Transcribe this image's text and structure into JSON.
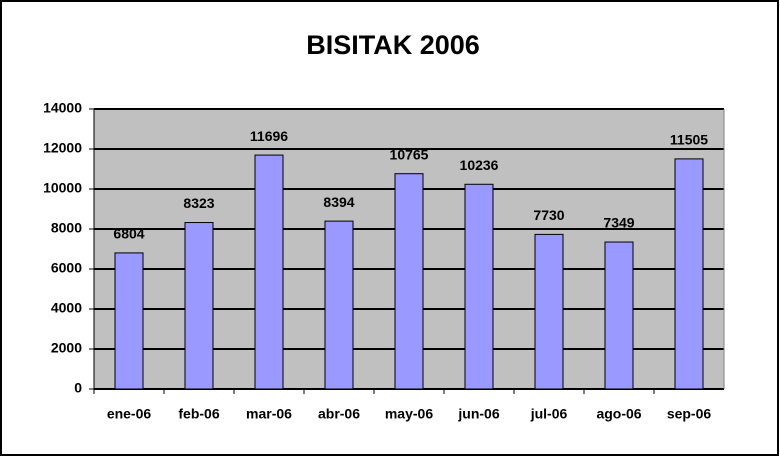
{
  "chart_data": {
    "type": "bar",
    "title": "BISITAK 2006",
    "categories": [
      "ene-06",
      "feb-06",
      "mar-06",
      "abr-06",
      "may-06",
      "jun-06",
      "jul-06",
      "ago-06",
      "sep-06"
    ],
    "values": [
      6804,
      8323,
      11696,
      8394,
      10765,
      10236,
      7730,
      7349,
      11505
    ],
    "color": "#9999ff",
    "ylim": [
      0,
      14000
    ],
    "yticks": [
      0,
      2000,
      4000,
      6000,
      8000,
      10000,
      12000,
      14000
    ],
    "grid": true
  }
}
